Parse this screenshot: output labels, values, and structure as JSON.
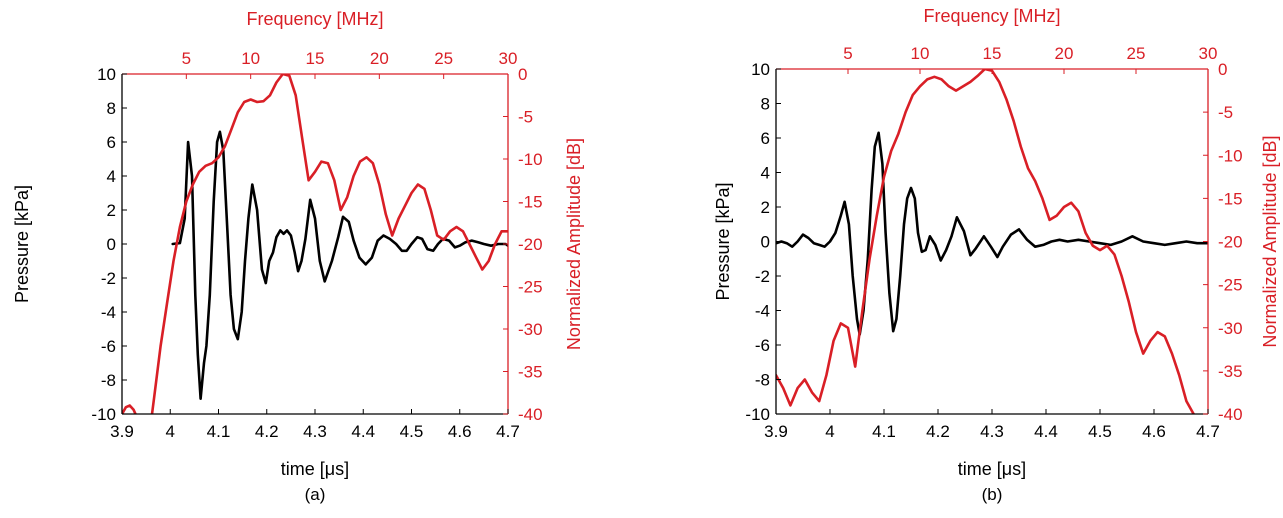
{
  "colors": {
    "pressure": "#000000",
    "spectrum": "#d91f26",
    "axis": "#000000"
  },
  "chart_data": [
    {
      "type": "line",
      "caption": "(a)",
      "xlabel": "time [μs]",
      "ylabel": "Pressure [kPa]",
      "x2label": "Frequency [MHz]",
      "y2label": "Normalized Amplitude [dB]",
      "xlim": [
        3.9,
        4.7
      ],
      "ylim": [
        -10,
        10
      ],
      "x2lim": [
        0,
        30
      ],
      "y2lim": [
        -40,
        0
      ],
      "xticks": [
        "3.9",
        "4",
        "4.1",
        "4.2",
        "4.3",
        "4.4",
        "4.5",
        "4.6",
        "4.7"
      ],
      "yticks": [
        "-10",
        "-8",
        "-6",
        "-4",
        "-2",
        "0",
        "2",
        "4",
        "6",
        "8",
        "10"
      ],
      "x2ticks": [
        "5",
        "10",
        "15",
        "20",
        "25",
        "30"
      ],
      "y2ticks": [
        "-40",
        "-35",
        "-30",
        "-25",
        "-20",
        "-15",
        "-10",
        "-5",
        "0"
      ],
      "series": [
        {
          "axis": "primary",
          "x": [
            4.005,
            4.02,
            4.03,
            4.037,
            4.045,
            4.052,
            4.057,
            4.063,
            4.07,
            4.075,
            4.082,
            4.09,
            4.097,
            4.103,
            4.11,
            4.118,
            4.125,
            4.132,
            4.14,
            4.148,
            4.155,
            4.162,
            4.17,
            4.18,
            4.19,
            4.198,
            4.205,
            4.213,
            4.22,
            4.228,
            4.235,
            4.242,
            4.25,
            4.258,
            4.265,
            4.272,
            4.28,
            4.29,
            4.3,
            4.31,
            4.32,
            4.335,
            4.348,
            4.358,
            4.37,
            4.38,
            4.392,
            4.405,
            4.418,
            4.43,
            4.442,
            4.455,
            4.468,
            4.48,
            4.49,
            4.5,
            4.512,
            4.522,
            4.533,
            4.545,
            4.555,
            4.565,
            4.578,
            4.59,
            4.6,
            4.612,
            4.625,
            4.638,
            4.65,
            4.665,
            4.68,
            4.695,
            4.7
          ],
          "y": [
            0,
            0.05,
            1.5,
            6.0,
            4.0,
            -3.0,
            -6.5,
            -9.1,
            -7.0,
            -6.0,
            -3.0,
            2.5,
            6.0,
            6.6,
            5.5,
            1.0,
            -3.0,
            -5.0,
            -5.6,
            -4.0,
            -1.0,
            1.5,
            3.5,
            2.0,
            -1.5,
            -2.3,
            -1.0,
            -0.5,
            0.4,
            0.8,
            0.6,
            0.8,
            0.5,
            -0.5,
            -1.6,
            -1.0,
            0.3,
            2.6,
            1.5,
            -1.0,
            -2.2,
            -1.0,
            0.4,
            1.6,
            1.3,
            0.2,
            -0.8,
            -1.2,
            -0.8,
            0.2,
            0.5,
            0.3,
            0,
            -0.4,
            -0.4,
            0,
            0.4,
            0.3,
            -0.3,
            -0.4,
            0,
            0.3,
            0.2,
            -0.2,
            -0.1,
            0.1,
            0.2,
            0.1,
            0,
            -0.1,
            0,
            0,
            -0.1
          ]
        },
        {
          "axis": "secondary",
          "x": [
            0,
            0.3,
            0.6,
            0.9,
            1.2,
            1.5,
            2.0,
            2.5,
            3.0,
            3.5,
            4.0,
            4.5,
            5.0,
            5.5,
            6.0,
            6.5,
            7.0,
            7.5,
            8.0,
            8.5,
            9.0,
            9.5,
            10.0,
            10.5,
            11.0,
            11.5,
            12.0,
            12.5,
            13.0,
            13.5,
            14.0,
            14.5,
            15.0,
            15.5,
            16.0,
            16.5,
            17.0,
            17.5,
            18.0,
            18.5,
            19.0,
            19.5,
            20.0,
            20.5,
            21.0,
            21.5,
            22.0,
            22.5,
            23.0,
            23.5,
            24.0,
            24.5,
            25.0,
            25.5,
            26.0,
            26.5,
            27.0,
            27.5,
            28.0,
            28.5,
            29.0,
            29.5,
            30.0
          ],
          "y": [
            -40,
            -39.2,
            -39.0,
            -39.5,
            -40.5,
            -42,
            -44,
            -38,
            -32,
            -27,
            -22,
            -18,
            -15,
            -13,
            -11.5,
            -10.8,
            -10.5,
            -9.8,
            -8.5,
            -6.5,
            -4.5,
            -3.3,
            -3.0,
            -3.3,
            -3.2,
            -2.5,
            -1.0,
            0,
            -0.2,
            -2.5,
            -7.5,
            -12.5,
            -11.5,
            -10.3,
            -10.5,
            -12.5,
            -16.0,
            -14.5,
            -12.0,
            -10.3,
            -9.8,
            -10.5,
            -13.0,
            -16.5,
            -19.0,
            -17.0,
            -15.5,
            -14.0,
            -13.0,
            -13.5,
            -16.0,
            -19.0,
            -19.5,
            -18.5,
            -18.0,
            -18.5,
            -20.0,
            -21.5,
            -23.0,
            -22.0,
            -20.0,
            -18.5,
            -18.5
          ]
        }
      ]
    },
    {
      "type": "line",
      "caption": "(b)",
      "xlabel": "time [μs]",
      "ylabel": "Pressure [kPa]",
      "x2label": "Frequency [MHz]",
      "y2label": "Normalized Amplitude [dB]",
      "xlim": [
        3.9,
        4.7
      ],
      "ylim": [
        -10,
        10
      ],
      "x2lim": [
        0,
        30
      ],
      "y2lim": [
        -40,
        0
      ],
      "xticks": [
        "3.9",
        "4",
        "4.1",
        "4.2",
        "4.3",
        "4.4",
        "4.5",
        "4.6",
        "4.7"
      ],
      "yticks": [
        "-10",
        "-8",
        "-6",
        "-4",
        "-2",
        "0",
        "2",
        "4",
        "6",
        "8",
        "10"
      ],
      "x2ticks": [
        "5",
        "10",
        "15",
        "20",
        "25",
        "30"
      ],
      "y2ticks": [
        "-40",
        "-35",
        "-30",
        "-25",
        "-20",
        "-15",
        "-10",
        "-5",
        "0"
      ],
      "series": [
        {
          "axis": "primary",
          "x": [
            3.9,
            3.91,
            3.92,
            3.93,
            3.94,
            3.95,
            3.96,
            3.97,
            3.98,
            3.99,
            4.0,
            4.01,
            4.02,
            4.027,
            4.035,
            4.042,
            4.05,
            4.055,
            4.062,
            4.07,
            4.077,
            4.083,
            4.09,
            4.097,
            4.103,
            4.11,
            4.117,
            4.123,
            4.13,
            4.137,
            4.143,
            4.15,
            4.157,
            4.163,
            4.17,
            4.177,
            4.185,
            4.195,
            4.205,
            4.215,
            4.225,
            4.235,
            4.248,
            4.26,
            4.27,
            4.285,
            4.298,
            4.31,
            4.32,
            4.335,
            4.35,
            4.365,
            4.38,
            4.395,
            4.41,
            4.425,
            4.44,
            4.46,
            4.48,
            4.5,
            4.52,
            4.54,
            4.56,
            4.58,
            4.6,
            4.62,
            4.64,
            4.66,
            4.68,
            4.7
          ],
          "y": [
            -0.1,
            0,
            -0.1,
            -0.3,
            0,
            0.4,
            0.2,
            -0.1,
            -0.2,
            -0.3,
            0,
            0.5,
            1.5,
            2.3,
            1.0,
            -2.0,
            -4.5,
            -5.4,
            -4.0,
            -1.0,
            3.0,
            5.5,
            6.3,
            4.5,
            0.5,
            -3.0,
            -5.2,
            -4.5,
            -2.0,
            1.0,
            2.5,
            3.1,
            2.5,
            0.5,
            -0.6,
            -0.5,
            0.3,
            -0.2,
            -1.1,
            -0.5,
            0.3,
            1.4,
            0.6,
            -0.8,
            -0.4,
            0.3,
            -0.3,
            -0.9,
            -0.3,
            0.4,
            0.7,
            0.1,
            -0.3,
            -0.2,
            0.0,
            0.1,
            0.0,
            0.1,
            0.0,
            -0.1,
            -0.2,
            0.0,
            0.3,
            0.0,
            -0.1,
            -0.2,
            -0.1,
            0.0,
            -0.1,
            -0.1
          ]
        },
        {
          "axis": "secondary",
          "x": [
            0,
            0.5,
            1.0,
            1.5,
            2.0,
            2.5,
            3.0,
            3.5,
            4.0,
            4.5,
            5.0,
            5.5,
            6.0,
            6.5,
            7.0,
            7.5,
            8.0,
            8.5,
            9.0,
            9.5,
            10.0,
            10.5,
            11.0,
            11.5,
            12.0,
            12.5,
            13.0,
            13.5,
            14.0,
            14.5,
            15.0,
            15.5,
            16.0,
            16.5,
            17.0,
            17.5,
            18.0,
            18.5,
            19.0,
            19.5,
            20.0,
            20.5,
            21.0,
            21.5,
            22.0,
            22.5,
            23.0,
            23.5,
            24.0,
            24.5,
            25.0,
            25.5,
            26.0,
            26.5,
            27.0,
            27.5,
            28.0,
            28.5,
            29.0,
            29.5,
            30.0
          ],
          "y": [
            -35.5,
            -37.0,
            -39.0,
            -37.0,
            -36.0,
            -37.5,
            -38.5,
            -35.5,
            -31.5,
            -29.5,
            -30.0,
            -34.5,
            -28.0,
            -22.0,
            -17.0,
            -12.5,
            -9.5,
            -7.5,
            -5.0,
            -3.0,
            -2.0,
            -1.2,
            -0.9,
            -1.2,
            -2.0,
            -2.5,
            -2.0,
            -1.5,
            -0.8,
            0,
            -0.2,
            -1.5,
            -3.5,
            -6.0,
            -9.0,
            -11.5,
            -13.0,
            -15.0,
            -17.5,
            -17.0,
            -16.0,
            -15.5,
            -16.5,
            -19.0,
            -20.5,
            -21.0,
            -20.5,
            -21.5,
            -24.0,
            -27.0,
            -30.5,
            -33.0,
            -31.5,
            -30.5,
            -31.0,
            -33.0,
            -35.5,
            -38.5,
            -40.0,
            -42.0,
            -43.0
          ]
        }
      ]
    }
  ]
}
